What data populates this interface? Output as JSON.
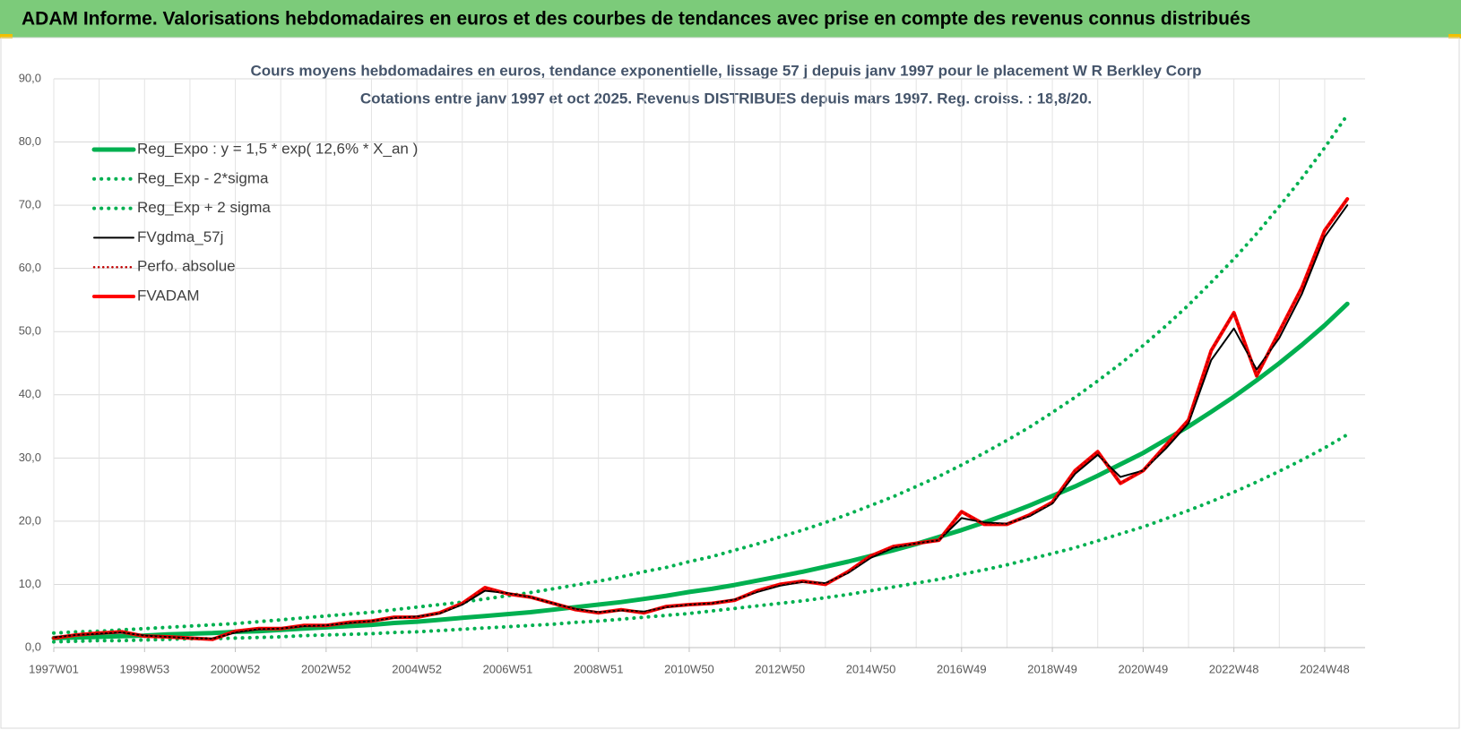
{
  "header": {
    "title": "ADAM Informe. Valorisations hebdomadaires en euros et des courbes de tendances avec prise en compte des revenus connus distribués"
  },
  "chart_data": {
    "type": "line",
    "title": "Cours moyens hebdomadaires en euros, tendance exponentielle, lissage 57 j depuis janv 1997 pour le placement W R Berkley Corp",
    "subtitle": "Cotations entre janv 1997 et oct 2025. Revenus DISTRIBUES depuis mars 1997. Reg. croiss. : 18,8/20.",
    "categories": [
      "1997W01",
      null,
      null,
      null,
      "1998W53",
      null,
      null,
      null,
      "2000W52",
      null,
      null,
      null,
      "2002W52",
      null,
      null,
      null,
      "2004W52",
      null,
      null,
      null,
      "2006W51",
      null,
      null,
      null,
      "2008W51",
      null,
      null,
      null,
      "2010W50",
      null,
      null,
      null,
      "2012W50",
      null,
      null,
      null,
      "2014W50",
      null,
      null,
      null,
      "2016W49",
      null,
      null,
      null,
      "2018W49",
      null,
      null,
      null,
      "2020W49",
      null,
      null,
      null,
      "2022W48",
      null,
      null,
      null,
      "2024W48",
      null
    ],
    "ylim": [
      0,
      90
    ],
    "yticks": [
      {
        "value": 0,
        "label": "0,0"
      },
      {
        "value": 10,
        "label": "10,0"
      },
      {
        "value": 20,
        "label": "20,0"
      },
      {
        "value": 30,
        "label": "30,0"
      },
      {
        "value": 40,
        "label": "40,0"
      },
      {
        "value": 50,
        "label": "50,0"
      },
      {
        "value": 60,
        "label": "60,0"
      },
      {
        "value": 70,
        "label": "70,0"
      },
      {
        "value": 80,
        "label": "80,0"
      },
      {
        "value": 90,
        "label": "90,0"
      }
    ],
    "grid": true,
    "legend": "top-left",
    "series": [
      {
        "name": "Reg_Expo : y = 1,5 * exp( 12,6% *  X_an )",
        "color": "#00b050",
        "style": "solid",
        "values": [
          1.5,
          1.6,
          1.7,
          1.8,
          1.9,
          2.1,
          2.2,
          2.3,
          2.5,
          2.6,
          2.8,
          3.0,
          3.2,
          3.4,
          3.6,
          3.9,
          4.1,
          4.4,
          4.7,
          5.0,
          5.3,
          5.6,
          6.0,
          6.4,
          6.8,
          7.2,
          7.7,
          8.2,
          8.8,
          9.3,
          9.9,
          10.6,
          11.3,
          12.0,
          12.8,
          13.6,
          14.5,
          15.4,
          16.4,
          17.5,
          18.6,
          19.8,
          21.1,
          22.5,
          24.0,
          25.5,
          27.2,
          29.0,
          30.8,
          32.9,
          35.0,
          37.3,
          39.7,
          42.3,
          45.0,
          47.9,
          51.0,
          54.4
        ]
      },
      {
        "name": "Reg_Exp - 2*sigma",
        "color": "#00b050",
        "style": "dotted",
        "values": [
          0.9,
          1.0,
          1.1,
          1.1,
          1.2,
          1.3,
          1.4,
          1.4,
          1.5,
          1.6,
          1.7,
          1.9,
          2.0,
          2.1,
          2.2,
          2.4,
          2.5,
          2.7,
          2.9,
          3.1,
          3.3,
          3.5,
          3.7,
          4.0,
          4.2,
          4.5,
          4.8,
          5.1,
          5.4,
          5.8,
          6.2,
          6.6,
          7.0,
          7.4,
          7.9,
          8.4,
          9.0,
          9.6,
          10.2,
          10.8,
          11.6,
          12.3,
          13.1,
          14.0,
          14.9,
          15.8,
          16.9,
          18.0,
          19.1,
          20.4,
          21.7,
          23.1,
          24.6,
          26.2,
          27.9,
          29.7,
          31.6,
          33.7
        ]
      },
      {
        "name": "Reg_Exp + 2 sigma",
        "color": "#00b050",
        "style": "dotted",
        "values": [
          2.3,
          2.5,
          2.6,
          2.8,
          3.0,
          3.2,
          3.4,
          3.6,
          3.8,
          4.1,
          4.4,
          4.7,
          5.0,
          5.3,
          5.6,
          6.0,
          6.4,
          6.8,
          7.2,
          7.7,
          8.2,
          8.7,
          9.3,
          9.9,
          10.5,
          11.2,
          12.0,
          12.7,
          13.6,
          14.4,
          15.4,
          16.4,
          17.5,
          18.6,
          19.8,
          21.1,
          22.5,
          23.9,
          25.5,
          27.1,
          28.9,
          30.8,
          32.8,
          34.9,
          37.2,
          39.6,
          42.2,
          44.9,
          47.8,
          50.9,
          54.2,
          57.8,
          61.5,
          65.5,
          69.8,
          74.3,
          79.1,
          84.3
        ]
      },
      {
        "name": "FVgdma_57j",
        "color": "#000000",
        "style": "solid-thin",
        "values": [
          1.6,
          2.0,
          2.2,
          2.4,
          1.9,
          1.7,
          1.5,
          1.4,
          2.4,
          2.9,
          3.0,
          3.4,
          3.5,
          3.9,
          4.2,
          4.7,
          4.9,
          5.4,
          6.8,
          9.0,
          8.6,
          8.0,
          7.0,
          6.1,
          5.6,
          5.9,
          5.7,
          6.4,
          6.8,
          7.0,
          7.6,
          8.8,
          9.8,
          10.4,
          10.2,
          11.8,
          14.2,
          15.8,
          16.5,
          17.0,
          20.5,
          19.8,
          19.6,
          20.8,
          22.8,
          27.5,
          30.5,
          27.0,
          28.0,
          31.5,
          35.5,
          45.5,
          50.5,
          44.0,
          49.0,
          56.0,
          65.0,
          70.0
        ]
      },
      {
        "name": "Perfo. absolue",
        "color": "#c00000",
        "style": "dotted-thin",
        "values": [
          1.5,
          2.0,
          2.3,
          2.5,
          1.8,
          1.7,
          1.5,
          1.3,
          2.6,
          3.0,
          3.0,
          3.5,
          3.5,
          4.0,
          4.2,
          4.8,
          4.8,
          5.5,
          7.0,
          9.5,
          8.5,
          8.0,
          7.0,
          6.0,
          5.5,
          6.0,
          5.5,
          6.5,
          6.8,
          7.0,
          7.5,
          9.0,
          10.0,
          10.5,
          10.0,
          12.0,
          14.5,
          16.0,
          16.5,
          17.0,
          21.5,
          19.5,
          19.5,
          21.0,
          23.0,
          28.0,
          31.0,
          26.0,
          28.0,
          32.0,
          36.0,
          47.0,
          53.0,
          43.0,
          50.0,
          57.0,
          66.0,
          71.0
        ]
      },
      {
        "name": "FVADAM",
        "color": "#ff0000",
        "style": "solid-thick",
        "values": [
          1.5,
          2.0,
          2.3,
          2.5,
          1.8,
          1.7,
          1.5,
          1.3,
          2.6,
          3.0,
          3.0,
          3.5,
          3.5,
          4.0,
          4.2,
          4.8,
          4.8,
          5.5,
          7.0,
          9.5,
          8.5,
          8.0,
          7.0,
          6.0,
          5.5,
          6.0,
          5.5,
          6.5,
          6.8,
          7.0,
          7.5,
          9.0,
          10.0,
          10.5,
          10.0,
          12.0,
          14.5,
          16.0,
          16.5,
          17.0,
          21.5,
          19.5,
          19.5,
          21.0,
          23.0,
          28.0,
          31.0,
          26.0,
          28.0,
          32.0,
          36.0,
          47.0,
          53.0,
          43.0,
          50.0,
          57.0,
          66.0,
          71.0
        ]
      }
    ]
  }
}
